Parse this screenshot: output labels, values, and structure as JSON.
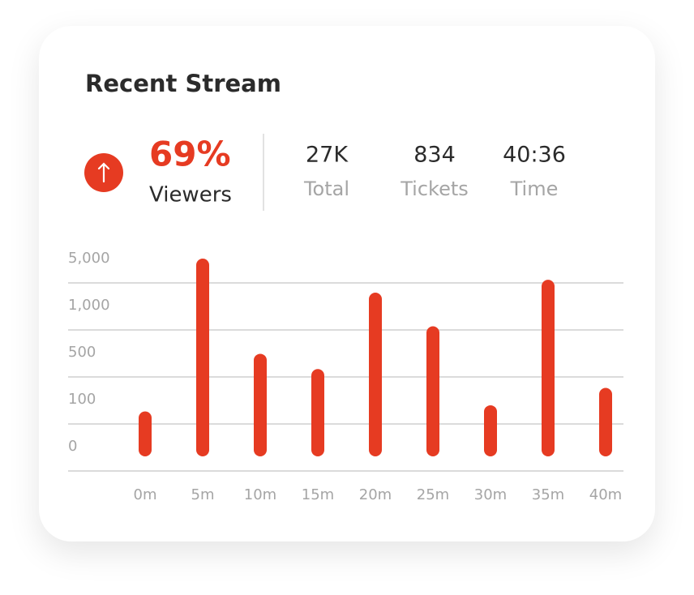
{
  "chart_data": {
    "type": "bar",
    "title": "Recent Stream",
    "categories": [
      "0m",
      "5m",
      "10m",
      "15m",
      "20m",
      "25m",
      "30m",
      "35m",
      "40m"
    ],
    "values": [
      75,
      5000,
      490,
      360,
      2100,
      780,
      88,
      3200,
      200
    ],
    "color": "#e63b22",
    "ylim": [
      0,
      5000
    ],
    "yticks": [
      0,
      100,
      500,
      {
        "value": 1000,
        "label": "1,000"
      },
      {
        "value": 5000,
        "label": "5,000"
      }
    ],
    "grid": true
  },
  "stats": {
    "highlight": {
      "value": "69%",
      "label": "Viewers"
    },
    "items": [
      {
        "value": "27K",
        "label": "Total"
      },
      {
        "value": "834",
        "label": "Tickets"
      },
      {
        "value": "40:36",
        "label": "Time"
      }
    ]
  }
}
